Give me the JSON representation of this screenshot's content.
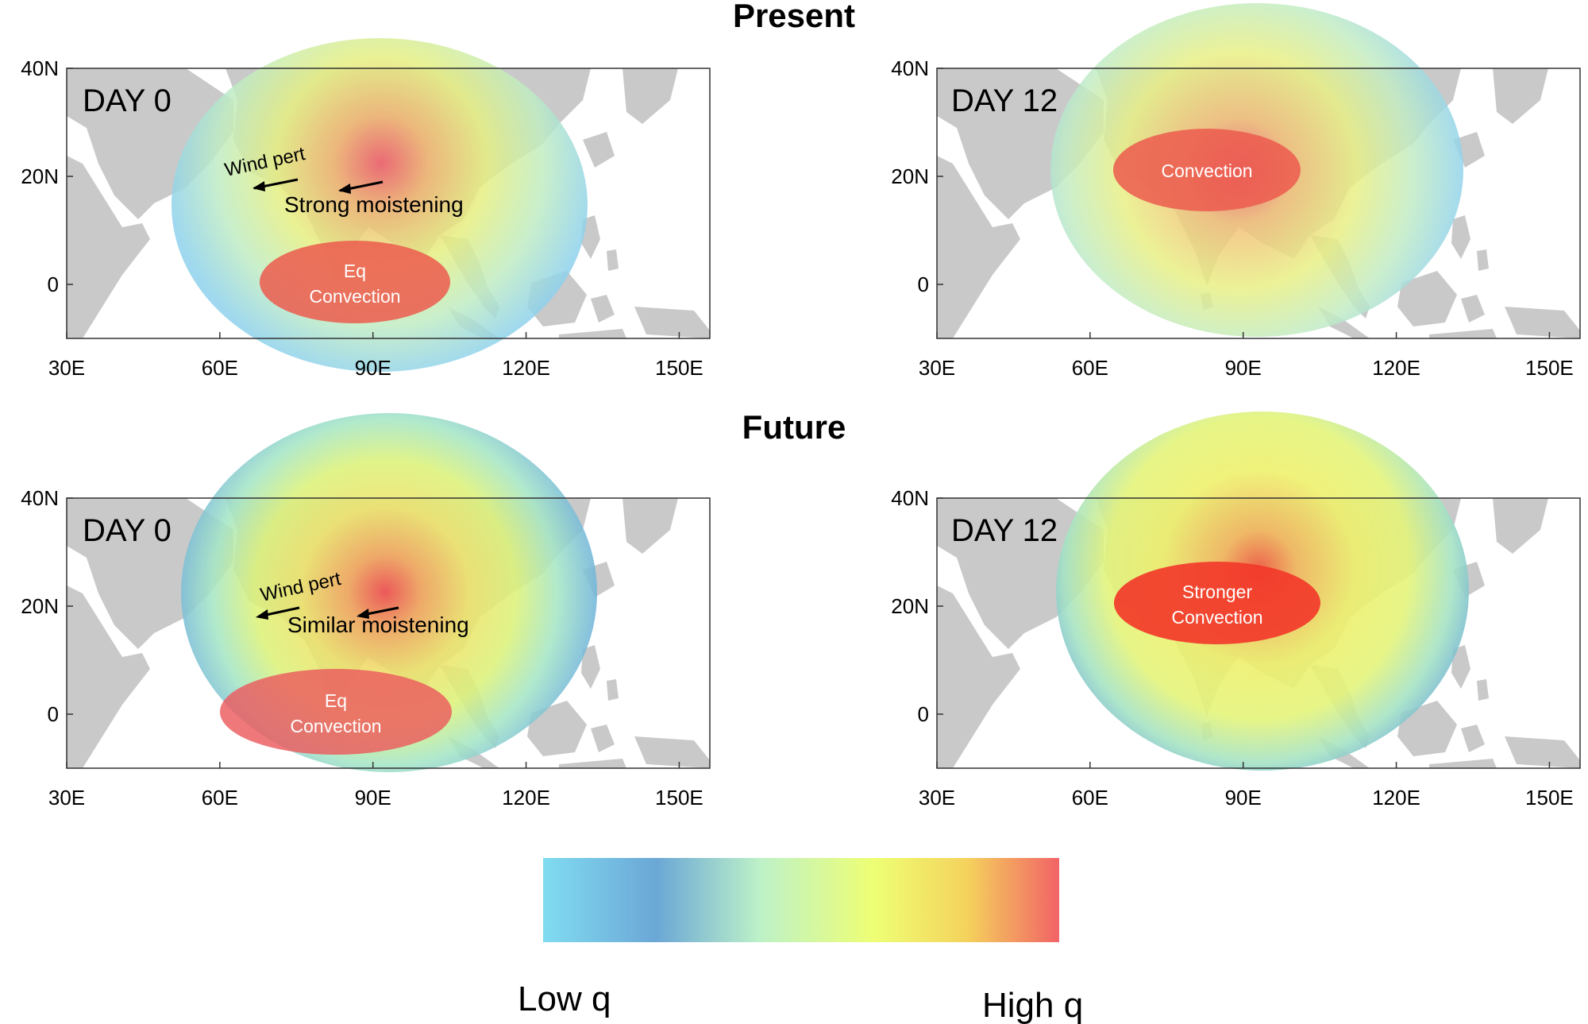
{
  "rows": [
    {
      "title": "Present",
      "panels": [
        {
          "day_label": "DAY 0",
          "annotations": {
            "wind": "Wind pert",
            "moistening": "Strong moistening"
          },
          "convection": [
            "Eq",
            "Convection"
          ],
          "stage": "present-day0"
        },
        {
          "day_label": "DAY 12",
          "annotations": null,
          "convection": [
            "Convection"
          ],
          "stage": "present-day12"
        }
      ]
    },
    {
      "title": "Future",
      "panels": [
        {
          "day_label": "DAY 0",
          "annotations": {
            "wind": "Wind pert",
            "moistening": "Similar moistening"
          },
          "convection": [
            "Eq",
            "Convection"
          ],
          "stage": "future-day0"
        },
        {
          "day_label": "DAY 12",
          "annotations": null,
          "convection": [
            "Stronger",
            "Convection"
          ],
          "stage": "future-day12"
        }
      ]
    }
  ],
  "axes": {
    "lon_ticks": [
      "30E",
      "60E",
      "90E",
      "120E",
      "150E"
    ],
    "lat_ticks": [
      "40N",
      "20N",
      "0"
    ],
    "lon_range": [
      30,
      156
    ],
    "lat_range": [
      -10,
      40
    ]
  },
  "colorbar": {
    "low_label": "Low q",
    "high_label": "High q",
    "stops": [
      "#80dcf1",
      "#6ba7d6",
      "#bdf1c8",
      "#eeff75",
      "#f4d35c",
      "#f26366"
    ]
  }
}
